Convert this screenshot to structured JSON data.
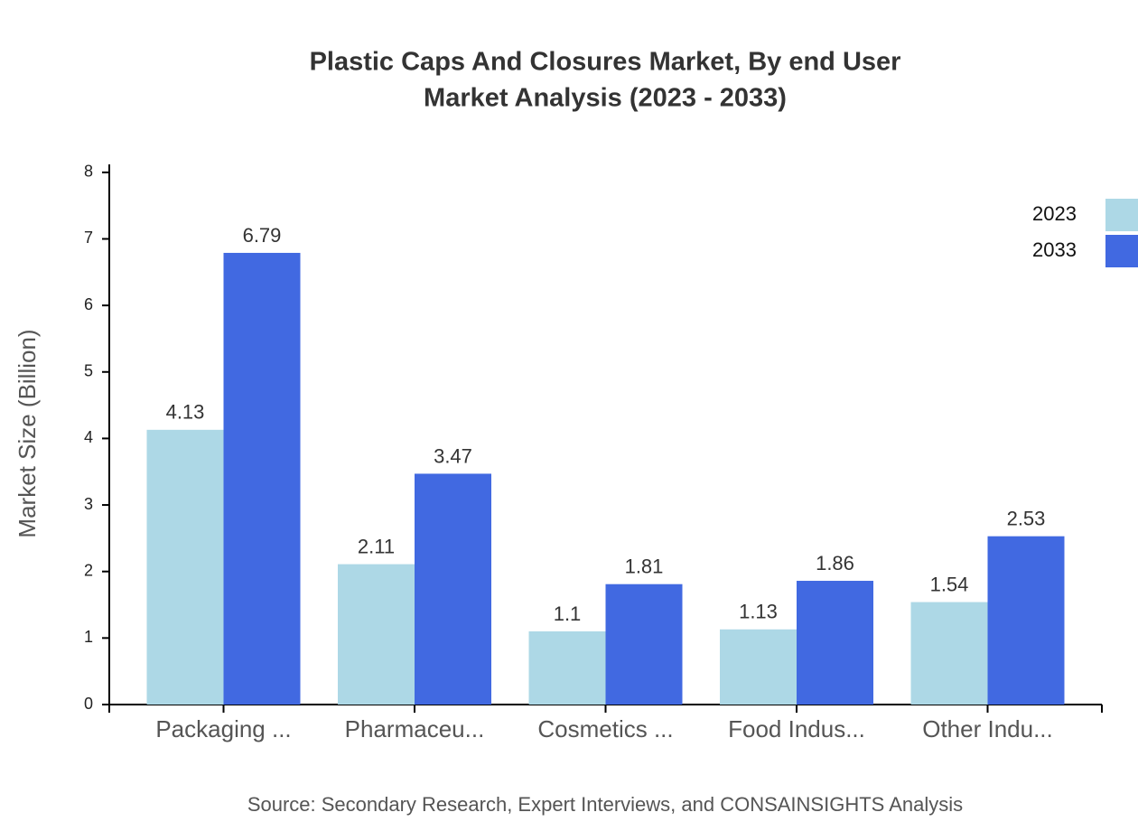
{
  "chart_data": {
    "type": "bar",
    "title": "Plastic Caps And Closures Market, By end User",
    "subtitle": "Market Analysis (2023 - 2033)",
    "y_label": "Market Size (Billion)",
    "source": "Source: Secondary Research, Expert Interviews, and CONSAINSIGHTS Analysis",
    "categories": [
      "Packaging ...",
      "Pharmaceu...",
      "Cosmetics ...",
      "Food Indus...",
      "Other Indu..."
    ],
    "series": [
      {
        "name": "2023",
        "color": "#add8e6",
        "values": [
          4.13,
          2.11,
          1.1,
          1.13,
          1.54
        ]
      },
      {
        "name": "2033",
        "color": "#4169e1",
        "values": [
          6.79,
          3.47,
          1.81,
          1.86,
          2.53
        ]
      }
    ],
    "ylim": [
      0,
      8.12
    ],
    "yticks": [
      0,
      1,
      2,
      3,
      4,
      5,
      6,
      7,
      8
    ],
    "legend": "top-right"
  }
}
